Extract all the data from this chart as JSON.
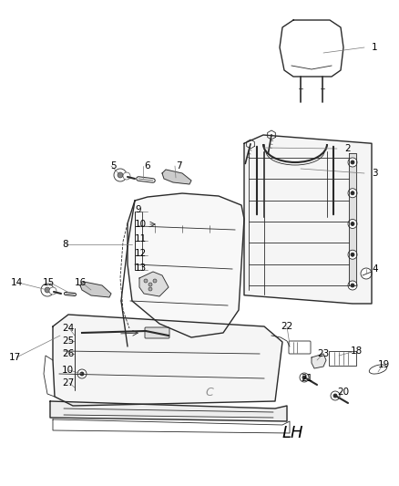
{
  "bg_color": "#ffffff",
  "line_color": "#2a2a2a",
  "gray_color": "#888888",
  "lh_text": "LH",
  "figsize": [
    4.38,
    5.33
  ],
  "dpi": 100,
  "labels": [
    [
      "1",
      408,
      52
    ],
    [
      "2",
      378,
      163
    ],
    [
      "3",
      408,
      190
    ],
    [
      "4",
      408,
      295
    ],
    [
      "5",
      121,
      182
    ],
    [
      "6",
      158,
      182
    ],
    [
      "7",
      193,
      182
    ],
    [
      "8",
      68,
      268
    ],
    [
      "9",
      148,
      230
    ],
    [
      "10",
      148,
      246
    ],
    [
      "11",
      148,
      262
    ],
    [
      "12",
      148,
      278
    ],
    [
      "13",
      148,
      294
    ],
    [
      "14",
      12,
      310
    ],
    [
      "15",
      47,
      310
    ],
    [
      "16",
      82,
      310
    ],
    [
      "17",
      10,
      392
    ],
    [
      "24",
      68,
      360
    ],
    [
      "25",
      68,
      374
    ],
    [
      "26",
      68,
      388
    ],
    [
      "10",
      68,
      406
    ],
    [
      "27",
      68,
      420
    ],
    [
      "22",
      308,
      358
    ],
    [
      "23",
      348,
      388
    ],
    [
      "18",
      385,
      385
    ],
    [
      "19",
      415,
      400
    ],
    [
      "21",
      330,
      415
    ],
    [
      "20",
      370,
      430
    ]
  ]
}
